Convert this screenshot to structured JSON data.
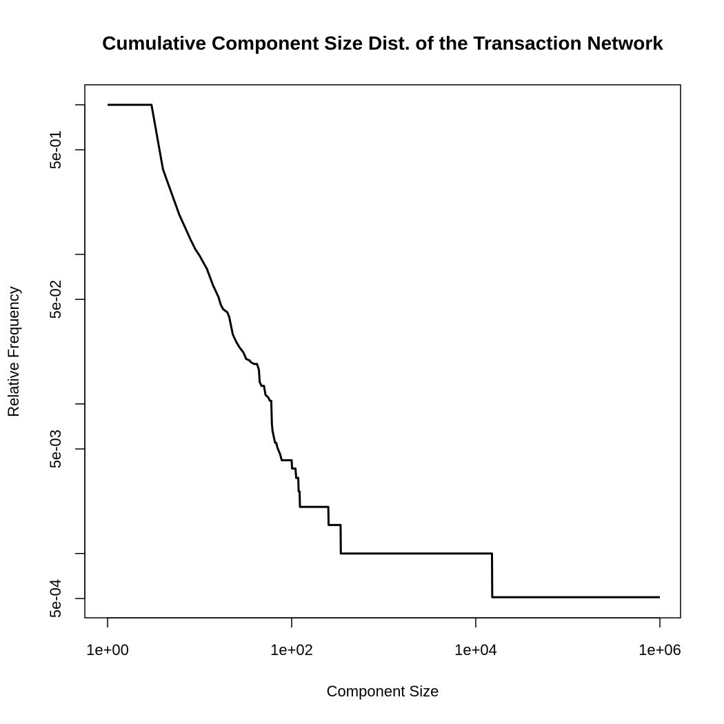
{
  "chart_data": {
    "type": "line",
    "title": "Cumulative Component Size Dist. of the Transaction Network",
    "xlabel": "Component Size",
    "ylabel": "Relative Frequency",
    "x_scale": "log",
    "y_scale": "log",
    "xlim": [
      1,
      1000000
    ],
    "ylim": [
      0.0005,
      1
    ],
    "grid": false,
    "legend": "none",
    "line_color": "#000000",
    "x_ticks": [
      {
        "value": 1,
        "label": "1e+00"
      },
      {
        "value": 100,
        "label": "1e+02"
      },
      {
        "value": 10000,
        "label": "1e+04"
      },
      {
        "value": 1000000,
        "label": "1e+06"
      }
    ],
    "y_ticks": [
      {
        "value": 0.0005,
        "label": "5e-04"
      },
      {
        "value": 0.001,
        "label": ""
      },
      {
        "value": 0.005,
        "label": "5e-03"
      },
      {
        "value": 0.01,
        "label": ""
      },
      {
        "value": 0.05,
        "label": "5e-02"
      },
      {
        "value": 0.1,
        "label": ""
      },
      {
        "value": 0.5,
        "label": "5e-01"
      },
      {
        "value": 1,
        "label": ""
      }
    ],
    "series": [
      {
        "points": [
          [
            1,
            1.0
          ],
          [
            3,
            1.0
          ],
          [
            4,
            0.37
          ],
          [
            6,
            0.185
          ],
          [
            7,
            0.15
          ],
          [
            8,
            0.125
          ],
          [
            9,
            0.108
          ],
          [
            10,
            0.098
          ],
          [
            11,
            0.088
          ],
          [
            12,
            0.08
          ],
          [
            14,
            0.062
          ],
          [
            16,
            0.052
          ],
          [
            17,
            0.046
          ],
          [
            18,
            0.043
          ],
          [
            20,
            0.041
          ],
          [
            21,
            0.038
          ],
          [
            22,
            0.033
          ],
          [
            23,
            0.029
          ],
          [
            25,
            0.026
          ],
          [
            27,
            0.024
          ],
          [
            30,
            0.022
          ],
          [
            32,
            0.02
          ],
          [
            35,
            0.0195
          ],
          [
            36,
            0.019
          ],
          [
            39,
            0.0185
          ],
          [
            42,
            0.0185
          ],
          [
            44,
            0.017
          ],
          [
            45,
            0.014
          ],
          [
            47,
            0.0132
          ],
          [
            50,
            0.0132
          ],
          [
            52,
            0.0115
          ],
          [
            56,
            0.011
          ],
          [
            58,
            0.0105
          ],
          [
            60,
            0.0105
          ],
          [
            61,
            0.0073
          ],
          [
            62,
            0.0066
          ],
          [
            66,
            0.0055
          ],
          [
            68,
            0.0055
          ],
          [
            70,
            0.0051
          ],
          [
            75,
            0.0046
          ],
          [
            78,
            0.0042
          ],
          [
            100,
            0.0042
          ],
          [
            101,
            0.0037
          ],
          [
            110,
            0.0037
          ],
          [
            112,
            0.0032
          ],
          [
            118,
            0.0032
          ],
          [
            119,
            0.0026
          ],
          [
            122,
            0.0026
          ],
          [
            123,
            0.00205
          ],
          [
            250,
            0.00205
          ],
          [
            252,
            0.00155
          ],
          [
            340,
            0.00155
          ],
          [
            342,
            0.001
          ],
          [
            15000,
            0.001
          ],
          [
            15100,
            0.00051
          ],
          [
            1000000,
            0.00051
          ]
        ]
      }
    ]
  }
}
